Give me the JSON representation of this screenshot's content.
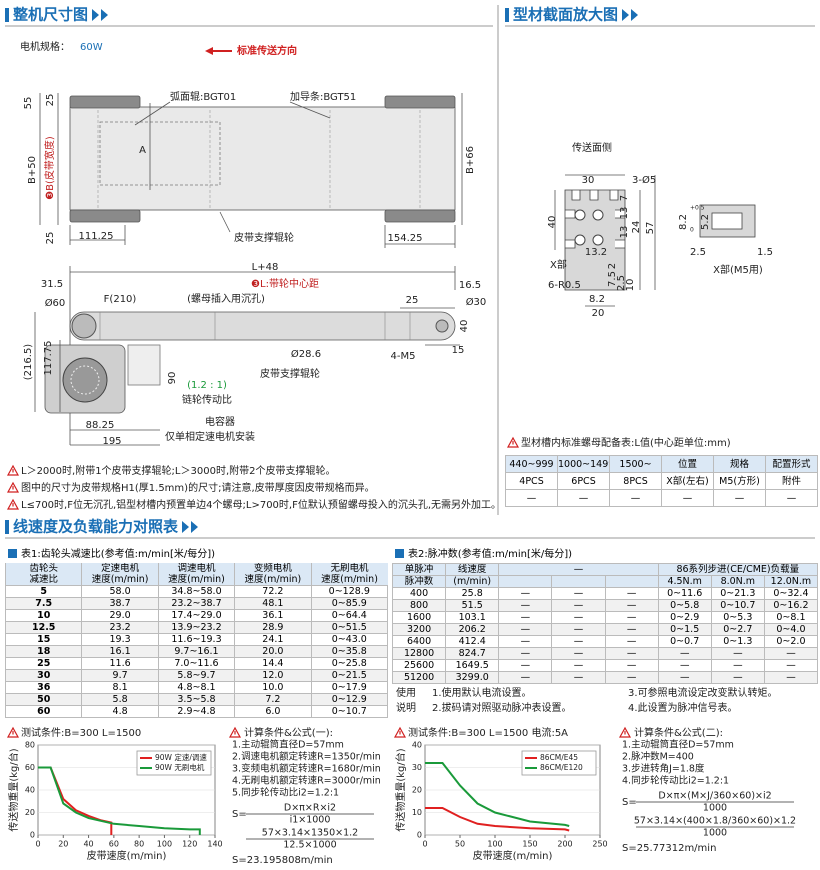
{
  "header": {
    "left_title": "整机尺寸图",
    "right_title": "型材截面放大图"
  },
  "top_view": {
    "motor_label": "电机规格：",
    "motor_value": "60W",
    "direction": "标准传送方向",
    "labels": [
      "弧面辊:BGT01",
      "加导条:BGT51",
      "55",
      "25",
      "A",
      "B+50",
      "❸B(皮带宽度)",
      "B+66",
      "25",
      "111.25",
      "皮带支撑辊轮",
      "154.25"
    ]
  },
  "side_view": {
    "labels": [
      "L+48",
      "31.5",
      "❸L:带轮中心距",
      "16.5",
      "Ø60",
      "F(210)",
      "(螺母插入用沉孔)",
      "25",
      "Ø30",
      "40",
      "(216.5)",
      "117.75",
      "Ø28.6",
      "4-M5",
      "15",
      "90",
      "(1.2 : 1)",
      "链轮传动比",
      "皮带支撑辊轮",
      "88.25",
      "电容器",
      "195",
      "仅单相定速电机安装"
    ]
  },
  "notes": [
    "L＞2000时,附带1个皮带支撑辊轮;L＞3000时,附带2个皮带支撑辊轮。",
    "图中的尺寸为皮带规格H1(厚1.5mm)的尺寸;请注意,皮带厚度因皮带规格而异。",
    "L≤700时,F位无沉孔,铝型材槽内预置单边4个螺母;L>700时,F位默认预留螺母投入的沉头孔,无需另外加工。"
  ],
  "profile": {
    "labels": [
      "传送面侧",
      "30",
      "3-Ø5",
      "40",
      "7",
      "13",
      "13",
      "24",
      "57",
      "13.2",
      "X部",
      "6-R0.5",
      "2",
      "7.5",
      "2.5",
      "10",
      "8.2",
      "20",
      "8.2",
      "+0.5",
      "0",
      "5.2",
      "2.5",
      "1.5",
      "X部(M5用)"
    ]
  },
  "nut_table": {
    "caption": "型材槽内标准螺母配备表:L值(中心距单位:mm)",
    "header": [
      "440~999",
      "1000~1499",
      "1500~",
      "位置",
      "规格",
      "配置形式"
    ],
    "rows": [
      [
        "4PCS",
        "6PCS",
        "8PCS",
        "X部(左右)",
        "M5(方形)",
        "附件"
      ],
      [
        "—",
        "—",
        "—",
        "—",
        "—",
        "—"
      ]
    ]
  },
  "speed_section": {
    "title": "线速度及负载能力对照表"
  },
  "table1": {
    "caption": "表1:齿轮头减速比(参考值:m/min[米/每分])",
    "header": [
      [
        "齿轮头",
        "定速电机",
        "调速电机",
        "变频电机",
        "无刷电机"
      ],
      [
        "减速比",
        "速度(m/min)",
        "速度(m/min)",
        "速度(m/min)",
        "速度(m/min)"
      ]
    ],
    "rows": [
      [
        "5",
        "58.0",
        "34.8~58.0",
        "72.2",
        "0~128.9"
      ],
      [
        "7.5",
        "38.7",
        "23.2~38.7",
        "48.1",
        "0~85.9"
      ],
      [
        "10",
        "29.0",
        "17.4~29.0",
        "36.1",
        "0~64.4"
      ],
      [
        "12.5",
        "23.2",
        "13.9~23.2",
        "28.9",
        "0~51.5"
      ],
      [
        "15",
        "19.3",
        "11.6~19.3",
        "24.1",
        "0~43.0"
      ],
      [
        "18",
        "16.1",
        "9.7~16.1",
        "20.0",
        "0~35.8"
      ],
      [
        "25",
        "11.6",
        "7.0~11.6",
        "14.4",
        "0~25.8"
      ],
      [
        "30",
        "9.7",
        "5.8~9.7",
        "12.0",
        "0~21.5"
      ],
      [
        "36",
        "8.1",
        "4.8~8.1",
        "10.0",
        "0~17.9"
      ],
      [
        "50",
        "5.8",
        "3.5~5.8",
        "7.2",
        "0~12.9"
      ],
      [
        "60",
        "4.8",
        "2.9~4.8",
        "6.0",
        "0~10.7"
      ]
    ]
  },
  "table2": {
    "caption": "表2:脉冲数(参考值:m/min[米/每分])",
    "header": [
      [
        "单脉冲",
        "线速度",
        "—",
        "86系列步进(CE/CME)负载量"
      ],
      [
        "脉冲数",
        "(m/min)",
        "4.5N.m",
        "8.0N.m",
        "12.0N.m"
      ]
    ],
    "rows": [
      [
        "400",
        "25.8",
        "—",
        "—",
        "—",
        "0~11.6",
        "0~21.3",
        "0~32.4"
      ],
      [
        "800",
        "51.5",
        "—",
        "—",
        "—",
        "0~5.8",
        "0~10.7",
        "0~16.2"
      ],
      [
        "1600",
        "103.1",
        "—",
        "—",
        "—",
        "0~2.9",
        "0~5.3",
        "0~8.1"
      ],
      [
        "3200",
        "206.2",
        "—",
        "—",
        "—",
        "0~1.5",
        "0~2.7",
        "0~4.0"
      ],
      [
        "6400",
        "412.4",
        "—",
        "—",
        "—",
        "0~0.7",
        "0~1.3",
        "0~2.0"
      ],
      [
        "12800",
        "824.7",
        "—",
        "—",
        "—",
        "—",
        "—",
        "—"
      ],
      [
        "25600",
        "1649.5",
        "—",
        "—",
        "—",
        "—",
        "—",
        "—"
      ],
      [
        "51200",
        "3299.0",
        "—",
        "—",
        "—",
        "—",
        "—",
        "—"
      ]
    ]
  },
  "table2_notes": {
    "label1": "使用",
    "label2": "说明",
    "items": [
      "1.使用默认电流设置。",
      "3.可参照电流设定改变默认转矩。",
      "2.拔码请对照驱动脉冲表设置。",
      "4.此设置为脉冲信号表。"
    ]
  },
  "charts": [
    {
      "type": "line",
      "condition": "测试条件:B=300  L=1500",
      "ylabel": "传送物重量(kg/台)",
      "xlabel": "皮带速度(m/min)",
      "xlim": [
        0,
        140
      ],
      "xticks": [
        0,
        20,
        40,
        60,
        80,
        100,
        120,
        140
      ],
      "ylim": [
        0,
        80
      ],
      "yticks": [
        0,
        20,
        40,
        60,
        80
      ],
      "series": [
        {
          "name": "90W 定速/调速",
          "color": "#e02020",
          "x": [
            0,
            10,
            20,
            30,
            40,
            50,
            58,
            58
          ],
          "values": [
            60,
            60,
            32,
            22,
            17,
            13,
            11,
            0
          ]
        },
        {
          "name": "90W 无刷电机",
          "color": "#1a9a3a",
          "x": [
            0,
            10,
            20,
            30,
            40,
            60,
            80,
            100,
            120,
            128,
            128
          ],
          "values": [
            60,
            60,
            28,
            20,
            15,
            10,
            8,
            6,
            5,
            5,
            0
          ]
        }
      ]
    },
    {
      "type": "line",
      "condition": "测试条件:B=300  L=1500  电流:5A",
      "ylabel": "传送物重量(kg/台)",
      "xlabel": "皮带速度(m/min)",
      "xlim": [
        0,
        250
      ],
      "xticks": [
        0,
        50,
        100,
        150,
        200,
        250
      ],
      "ylim": [
        0,
        40
      ],
      "yticks": [
        0,
        10,
        20,
        30,
        40
      ],
      "series": [
        {
          "name": "86CM/E45",
          "color": "#e02020",
          "x": [
            0,
            25,
            50,
            75,
            100,
            150,
            200,
            206
          ],
          "values": [
            12,
            12,
            8,
            5,
            4,
            3,
            2.5,
            2
          ]
        },
        {
          "name": "86CM/E120",
          "color": "#1a9a3a",
          "x": [
            0,
            25,
            50,
            75,
            100,
            150,
            200,
            206
          ],
          "values": [
            32,
            32,
            22,
            14,
            10,
            6,
            4.5,
            4
          ]
        }
      ]
    }
  ],
  "calcs": [
    {
      "title": "计算条件&公式(一):",
      "lines": [
        "1.主动辊筒直径D=57mm",
        "2.调速电机额定转速R=1350r/min",
        "3.变频电机额定转速R=1680r/min",
        "4.无刷电机额定转速R=3000r/min",
        "5.同步轮传动比i2=1.2:1"
      ],
      "eq": "S=",
      "formulas": [
        {
          "num": "D×π×R×i2",
          "den": "i1×1000"
        },
        {
          "num": "57×3.14×1350×1.2",
          "den": "12.5×1000"
        }
      ],
      "result": "S=23.195808m/min"
    },
    {
      "title": "计算条件&公式(二):",
      "lines": [
        "1.主动辊筒直径D=57mm",
        "2.脉冲数M=400",
        "3.步进转角J=1.8度",
        "4.同步轮传动比i2=1.2:1"
      ],
      "eq": "S=",
      "formulas": [
        {
          "num": "D×π×(M×J/360×60)×i2",
          "den": "1000"
        },
        {
          "num": "57×3.14×(400×1.8/360×60)×1.2",
          "den": "1000"
        }
      ],
      "result": "S=25.77312m/min"
    }
  ]
}
